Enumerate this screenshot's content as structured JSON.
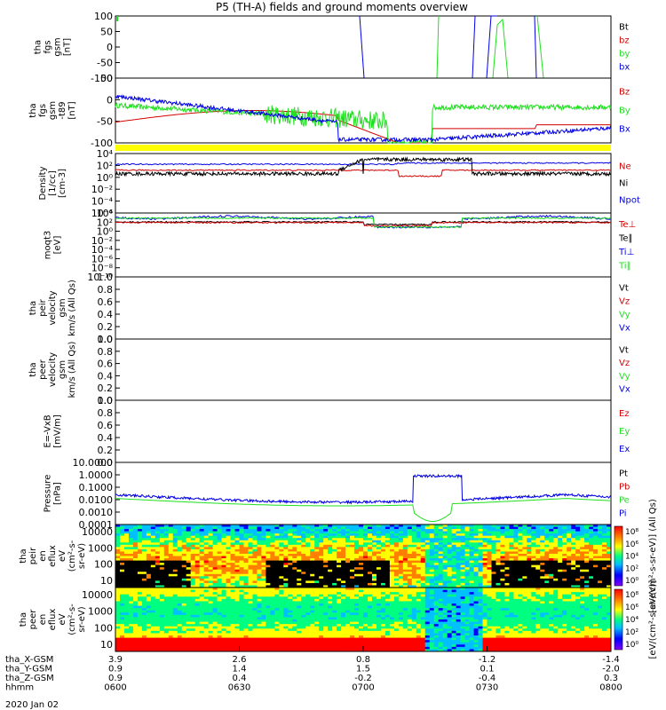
{
  "page": {
    "title": "P5 (TH-A) fields and ground moments overview",
    "date": "2020 Jan 02"
  },
  "colors": {
    "black": "#000000",
    "red": "#d40000",
    "green": "#1fe01f",
    "blue": "#0000e6",
    "yellow": "#ffff00",
    "bg": "#ffffff"
  },
  "chart_data": [
    {
      "type": "line",
      "ylabel": [
        "tha",
        "fgs",
        "gsm",
        "[nT]"
      ],
      "ylim": [
        -100,
        100
      ],
      "yticks": [
        "100",
        "50",
        "0",
        "-50",
        "-100"
      ],
      "legend": [
        {
          "label": "Bt",
          "color": "#000000"
        },
        {
          "label": "bz",
          "color": "#d40000"
        },
        {
          "label": "by",
          "color": "#1fe01f"
        },
        {
          "label": "bx",
          "color": "#0000e6"
        }
      ]
    },
    {
      "type": "line",
      "ylabel": [
        "tha",
        "fgs",
        "gsm",
        "-t89",
        "[nT]"
      ],
      "ylim": [
        -120,
        60
      ],
      "yticks": [
        "50",
        "0",
        "-50",
        "-100"
      ],
      "legend": [
        {
          "label": "Bz",
          "color": "#d40000"
        },
        {
          "label": "By",
          "color": "#1fe01f"
        },
        {
          "label": "Bx",
          "color": "#0000e6"
        }
      ]
    },
    {
      "type": "line",
      "scale": "log",
      "ylabel": [
        "Density",
        "[1/cc]",
        "[cm-3]"
      ],
      "ylim_exp": [
        -6,
        4
      ],
      "yticks": [
        "10⁴",
        "10²",
        "10⁰",
        "10⁻²",
        "10⁻⁴",
        "10⁻⁶"
      ],
      "legend": [
        {
          "label": "Ne",
          "color": "#d40000"
        },
        {
          "label": "Ni",
          "color": "#000000"
        },
        {
          "label": "Npot",
          "color": "#0000e6"
        }
      ]
    },
    {
      "type": "line",
      "scale": "log",
      "ylabel": [
        "moqt3",
        "[eV]"
      ],
      "ylim_exp": [
        -10,
        4
      ],
      "yticks": [
        "10⁴",
        "10²",
        "10⁰",
        "10⁻²",
        "10⁻⁴",
        "10⁻⁶",
        "10⁻⁸",
        "10⁻¹⁰"
      ],
      "legend": [
        {
          "label": "Te⊥",
          "color": "#d40000"
        },
        {
          "label": "Te∥",
          "color": "#000000"
        },
        {
          "label": "Ti⊥",
          "color": "#0000e6"
        },
        {
          "label": "Ti∥",
          "color": "#1fe01f"
        }
      ]
    },
    {
      "type": "line",
      "ylabel": [
        "tha",
        "peir",
        "velocity",
        "gsm",
        "km/s (All Qs)"
      ],
      "ylim": [
        0,
        1
      ],
      "yticks": [
        "1.0",
        "0.8",
        "0.6",
        "0.4",
        "0.2",
        "0.0"
      ],
      "legend": [
        {
          "label": "Vt",
          "color": "#000000"
        },
        {
          "label": "Vz",
          "color": "#d40000"
        },
        {
          "label": "Vy",
          "color": "#1fe01f"
        },
        {
          "label": "Vx",
          "color": "#0000e6"
        }
      ]
    },
    {
      "type": "line",
      "ylabel": [
        "tha",
        "peer",
        "velocity",
        "gsm",
        "km/s (All Qs)"
      ],
      "ylim": [
        0,
        1
      ],
      "yticks": [
        "1.0",
        "0.8",
        "0.6",
        "0.4",
        "0.2",
        "0.0"
      ],
      "legend": [
        {
          "label": "Vt",
          "color": "#000000"
        },
        {
          "label": "Vz",
          "color": "#d40000"
        },
        {
          "label": "Vy",
          "color": "#1fe01f"
        },
        {
          "label": "Vx",
          "color": "#0000e6"
        }
      ]
    },
    {
      "type": "line",
      "ylabel": [
        "E=-VxB",
        "[mV/m]"
      ],
      "ylim": [
        0,
        1
      ],
      "yticks": [
        "1.0",
        "0.8",
        "0.6",
        "0.4",
        "0.2",
        "0.0"
      ],
      "legend": [
        {
          "label": "Ez",
          "color": "#d40000"
        },
        {
          "label": "Ey",
          "color": "#1fe01f"
        },
        {
          "label": "Ex",
          "color": "#0000e6"
        }
      ]
    },
    {
      "type": "line",
      "scale": "log",
      "ylabel": [
        "Pressure",
        "[nPa]"
      ],
      "ylim_exp": [
        -4,
        1
      ],
      "yticks": [
        "10.0000",
        "1.0000",
        "0.1000",
        "0.0100",
        "0.0010",
        "0.0001"
      ],
      "legend": [
        {
          "label": "Pt",
          "color": "#000000"
        },
        {
          "label": "Pb",
          "color": "#d40000"
        },
        {
          "label": "Pe",
          "color": "#1fe01f"
        },
        {
          "label": "Pi",
          "color": "#0000e6"
        }
      ]
    },
    {
      "type": "heatmap",
      "ylabel": [
        "tha",
        "peir",
        "en",
        "eflux",
        "eV",
        "(cm²-s-",
        "sr-eV)"
      ],
      "yticks": [
        "10000",
        "1000",
        "100",
        "10"
      ],
      "colorbar_ticks": [
        "10⁸",
        "10⁶",
        "10⁴",
        "10²",
        "10⁰"
      ],
      "colorbar_label": "[eV/(cm²-s-sr-eV)] (All Qs)"
    },
    {
      "type": "heatmap",
      "ylabel": [
        "tha",
        "peer",
        "en",
        "eflux",
        "eV",
        "(cm²-s-",
        "sr-eV)"
      ],
      "yticks": [
        "10000",
        "1000",
        "100",
        "10"
      ],
      "colorbar_ticks": [
        "10⁸",
        "10⁶",
        "10⁴",
        "10²",
        "10⁰"
      ],
      "colorbar_label": "[eV/(cm²-s-sr-eV)]"
    }
  ],
  "x_axis": {
    "rows": [
      {
        "label": "tha_X-GSM",
        "values": [
          "3.9",
          "2.6",
          "0.8",
          "-1.2",
          "-1.4"
        ]
      },
      {
        "label": "tha_Y-GSM",
        "values": [
          "0.9",
          "1.4",
          "1.5",
          "0.1",
          "-2.0"
        ]
      },
      {
        "label": "tha_Z-GSM",
        "values": [
          "0.9",
          "0.4",
          "-0.2",
          "-0.4",
          "0.3"
        ]
      },
      {
        "label": "hhmm",
        "values": [
          "0600",
          "0630",
          "0700",
          "0730",
          "0800"
        ]
      }
    ]
  }
}
